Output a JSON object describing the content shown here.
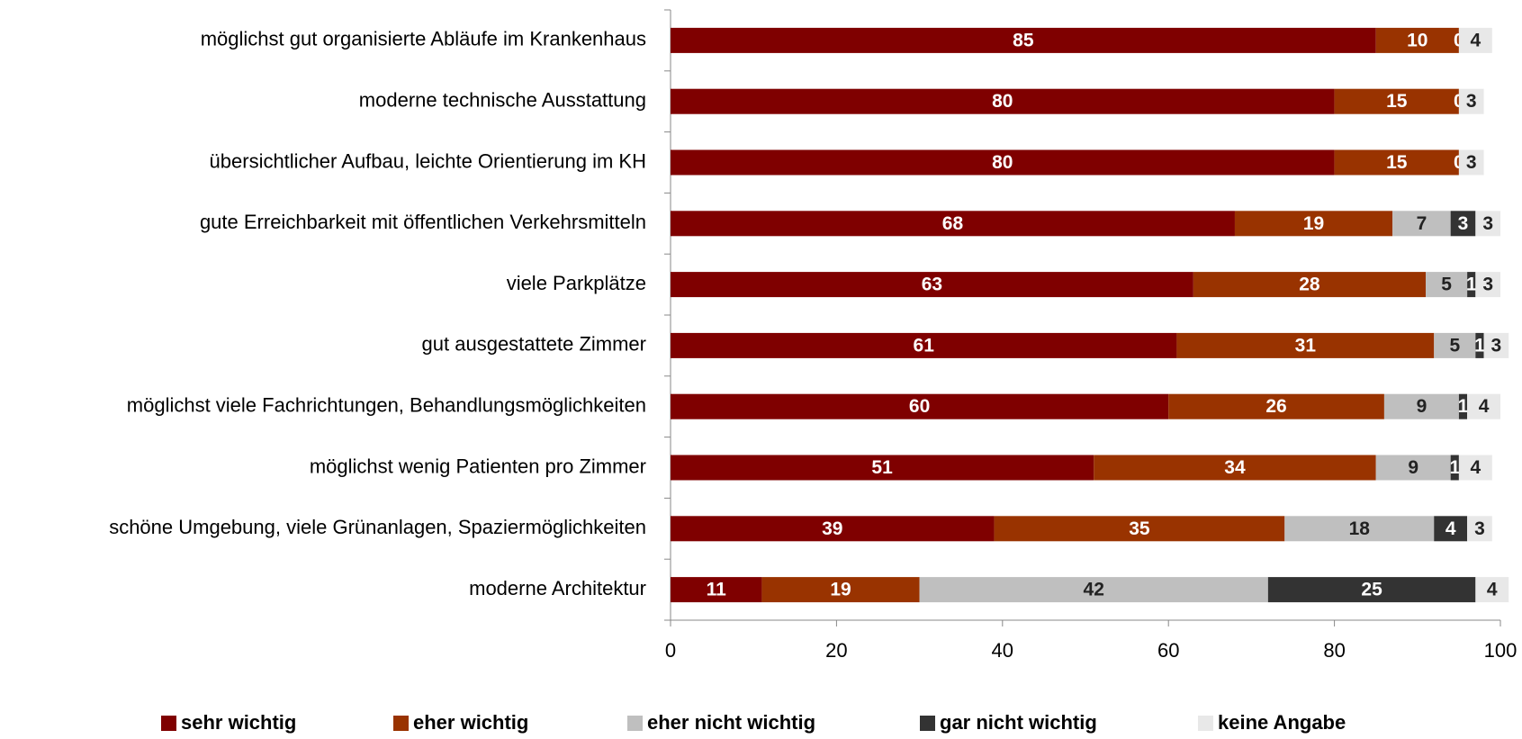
{
  "chart_data": {
    "type": "stacked-bar-horizontal",
    "categories": [
      "möglichst gut organisierte Abläufe im Krankenhaus",
      "moderne technische Ausstattung",
      "übersichtlicher Aufbau, leichte Orientierung im KH",
      "gute Erreichbarkeit mit öffentlichen Verkehrsmitteln",
      "viele Parkplätze",
      "gut ausgestattete Zimmer",
      "möglichst viele Fachrichtungen, Behandlungsmöglichkeiten",
      "möglichst wenig Patienten pro Zimmer",
      "schöne Umgebung, viele Grünanlagen, Spaziermöglichkeiten",
      "moderne Architektur"
    ],
    "series": [
      {
        "name": "sehr wichtig",
        "color": "#7f0000",
        "label_color": "#ffffff",
        "values": [
          85,
          80,
          80,
          68,
          63,
          61,
          60,
          51,
          39,
          11
        ]
      },
      {
        "name": "eher wichtig",
        "color": "#993300",
        "label_color": "#ffffff",
        "values": [
          10,
          15,
          15,
          19,
          28,
          31,
          26,
          34,
          35,
          19
        ]
      },
      {
        "name": "eher nicht wichtig",
        "color": "#bfbfbf",
        "label_color": "#222222",
        "values": [
          null,
          null,
          null,
          7,
          5,
          5,
          9,
          9,
          18,
          42
        ]
      },
      {
        "name": "gar nicht wichtig",
        "color": "#333333",
        "label_color": "#ffffff",
        "values": [
          0,
          0,
          0,
          3,
          1,
          1,
          1,
          1,
          4,
          25
        ]
      },
      {
        "name": "keine Angabe",
        "color": "#e8e8e8",
        "label_color": "#222222",
        "values": [
          4,
          3,
          3,
          3,
          3,
          3,
          4,
          4,
          3,
          4
        ]
      }
    ],
    "xlim": [
      0,
      100
    ],
    "xticks": [
      0,
      20,
      40,
      60,
      80,
      100
    ],
    "legend": "bottom"
  }
}
